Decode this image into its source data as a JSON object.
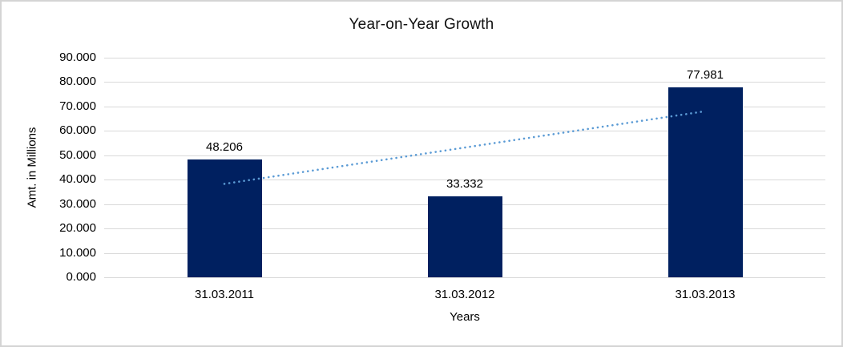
{
  "chart_data": {
    "type": "bar",
    "title": "Year-on-Year Growth",
    "xlabel": "Years",
    "ylabel": "Amt. in Millions",
    "categories": [
      "31.03.2011",
      "31.03.2012",
      "31.03.2013"
    ],
    "values": [
      48.206,
      33.332,
      77.981
    ],
    "value_labels": [
      "48.206",
      "33.332",
      "77.981"
    ],
    "ylim": [
      0,
      90
    ],
    "ytick_step": 10,
    "ytick_labels": [
      "0.000",
      "10.000",
      "20.000",
      "30.000",
      "40.000",
      "50.000",
      "60.000",
      "70.000",
      "80.000",
      "90.000"
    ],
    "grid": true,
    "legend_position": "none",
    "colors": {
      "bar": "#002060",
      "trendline": "#5b9bd5",
      "gridline": "#d9d9d9",
      "text": "#000000",
      "frame_border": "#d4d4d4"
    },
    "trendline": {
      "kind": "linear",
      "style": "dotted",
      "color": "#5b9bd5"
    }
  }
}
